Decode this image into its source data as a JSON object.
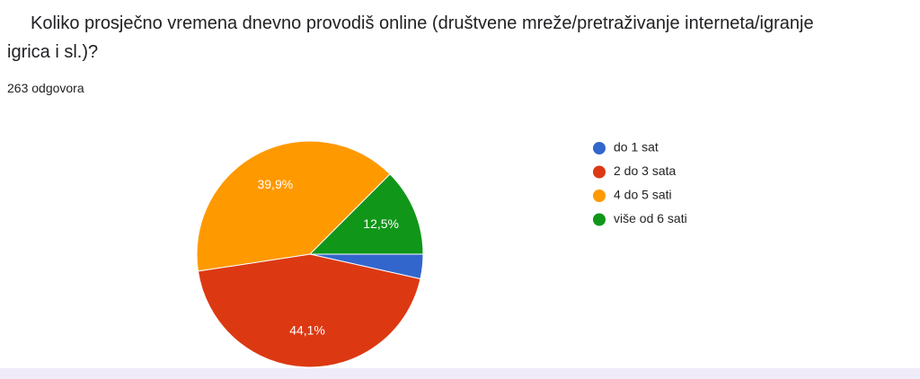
{
  "chart_data": {
    "type": "pie",
    "title": "Koliko prosječno vremena dnevno provodiš online (društvene mreže/pretraživanje interneta/igranje igrica i sl.)?",
    "subtitle": "263 odgovora",
    "categories": [
      "do 1 sat",
      "2 do 3 sata",
      "4 do 5 sati",
      "više od 6 sati"
    ],
    "values": [
      3.5,
      44.1,
      39.9,
      12.5
    ],
    "value_labels": [
      null,
      "44,1%",
      "39,9%",
      "12,5%"
    ],
    "colors": [
      "#3366cc",
      "#dc3912",
      "#ff9900",
      "#109618"
    ],
    "legend": "right"
  }
}
